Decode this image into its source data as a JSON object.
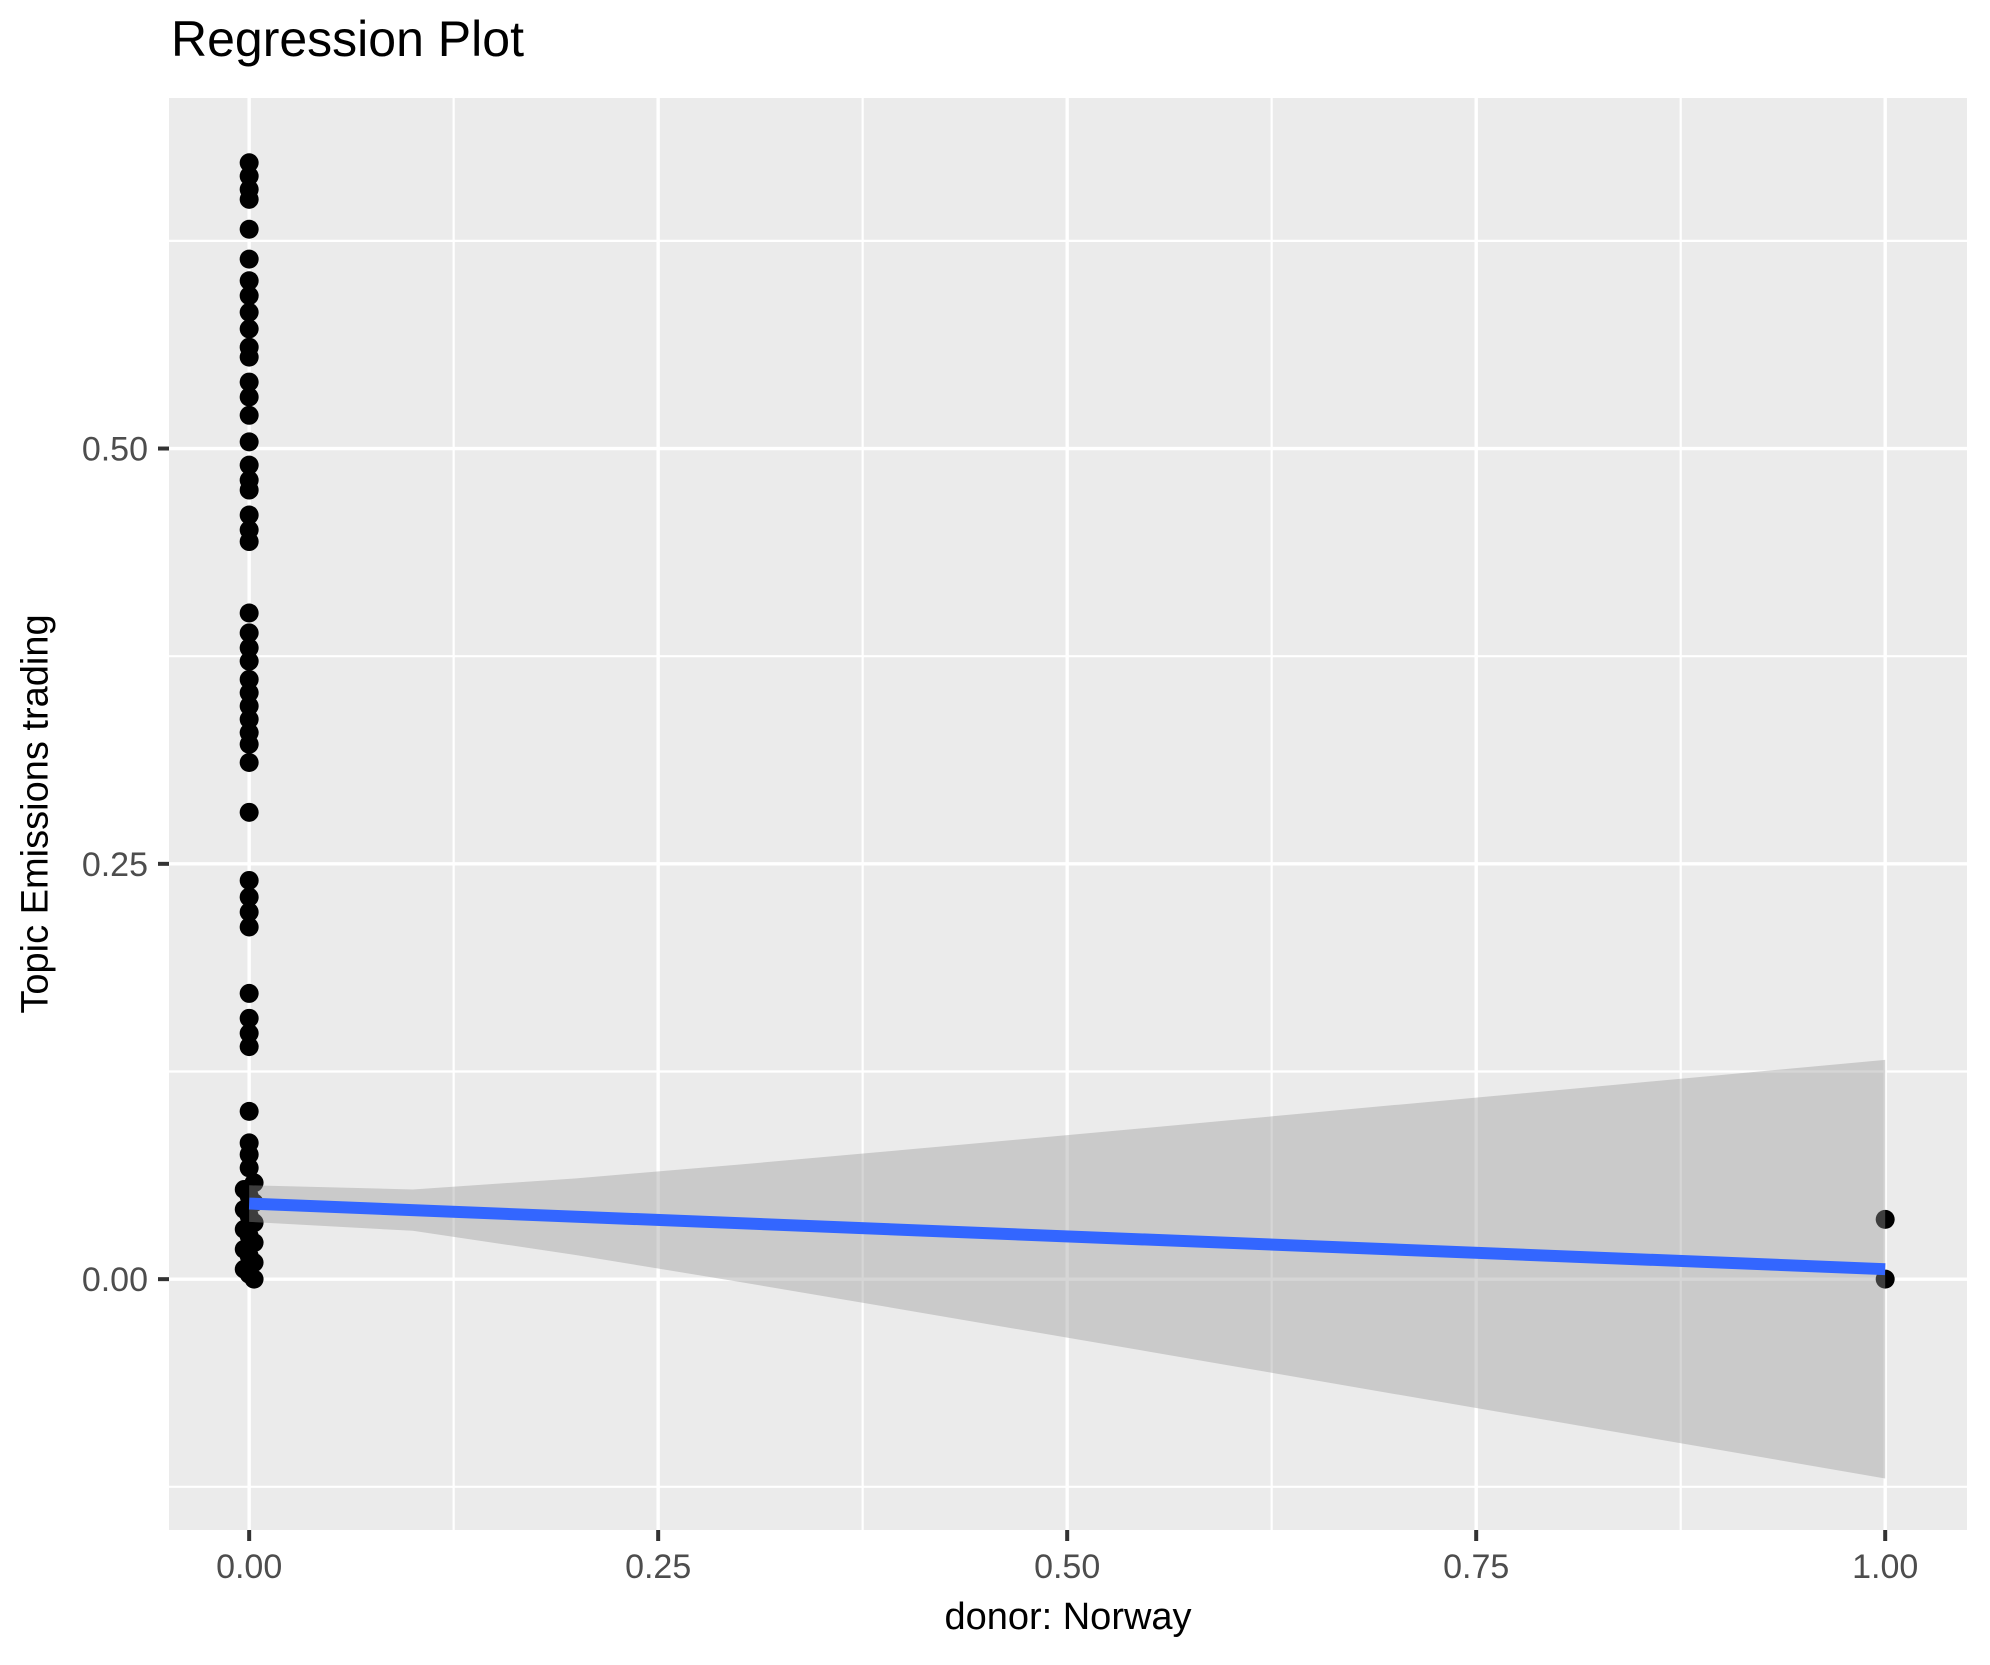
{
  "chart_data": {
    "type": "scatter",
    "title": "Regression Plot",
    "xlabel": "donor: Norway",
    "ylabel": "Topic Emissions trading",
    "x_range": [
      -0.049,
      1.05
    ],
    "y_range": [
      -0.151,
      0.711
    ],
    "x_ticks": [
      {
        "value": 0.0,
        "label": "0.00"
      },
      {
        "value": 0.25,
        "label": "0.25"
      },
      {
        "value": 0.5,
        "label": "0.50"
      },
      {
        "value": 0.75,
        "label": "0.75"
      },
      {
        "value": 1.0,
        "label": "1.00"
      }
    ],
    "y_ticks": [
      {
        "value": 0.0,
        "label": "0.00"
      },
      {
        "value": 0.25,
        "label": "0.25"
      },
      {
        "value": 0.5,
        "label": "0.50"
      }
    ],
    "x_minor": [
      0.125,
      0.375,
      0.625,
      0.875
    ],
    "y_minor": [
      -0.125,
      0.125,
      0.375,
      0.625
    ],
    "grid": true,
    "legend": "none",
    "points_x0": [
      0.672,
      0.664,
      0.656,
      0.65,
      0.632,
      0.614,
      0.601,
      0.592,
      0.582,
      0.572,
      0.561,
      0.555,
      0.54,
      0.531,
      0.52,
      0.504,
      0.49,
      0.481,
      0.475,
      0.46,
      0.451,
      0.444,
      0.401,
      0.389,
      0.38,
      0.372,
      0.361,
      0.353,
      0.345,
      0.337,
      0.329,
      0.322,
      0.311,
      0.281,
      0.24,
      0.23,
      0.221,
      0.212,
      0.172,
      0.157,
      0.148,
      0.14,
      0.101,
      0.082,
      0.075,
      0.067,
      0.058,
      0.054,
      0.05,
      0.046,
      0.042,
      0.038,
      0.034,
      0.03,
      0.026,
      0.022,
      0.018,
      0.014,
      0.01,
      0.006,
      0.003,
      0.0
    ],
    "points_x1": [
      0.036,
      0.0
    ],
    "point_jitter_cycle": [
      0,
      0.003,
      -0.003
    ],
    "regression_line": {
      "x": [
        0,
        1
      ],
      "y": [
        0.0455,
        0.006
      ]
    },
    "ci_ribbon": {
      "x": [
        0,
        0.1,
        0.2,
        0.3,
        0.4,
        0.5,
        0.6,
        0.7,
        0.8,
        0.9,
        1.0
      ],
      "upper": [
        0.0565,
        0.054,
        0.0607,
        0.069,
        0.0778,
        0.0867,
        0.0957,
        0.1048,
        0.1138,
        0.1229,
        0.132
      ],
      "lower": [
        0.0345,
        0.0291,
        0.0145,
        -0.0017,
        -0.0184,
        -0.0352,
        -0.0521,
        -0.0691,
        -0.086,
        -0.103,
        -0.12
      ]
    },
    "colors": {
      "panel_bg": "#EBEBEB",
      "grid": "#FFFFFF",
      "point": "#000000",
      "line": "#3366FF",
      "ribbon": "rgba(153,153,153,0.4)",
      "tick_mark": "#333333",
      "tick_label": "#4D4D4D",
      "text": "#000000"
    }
  }
}
